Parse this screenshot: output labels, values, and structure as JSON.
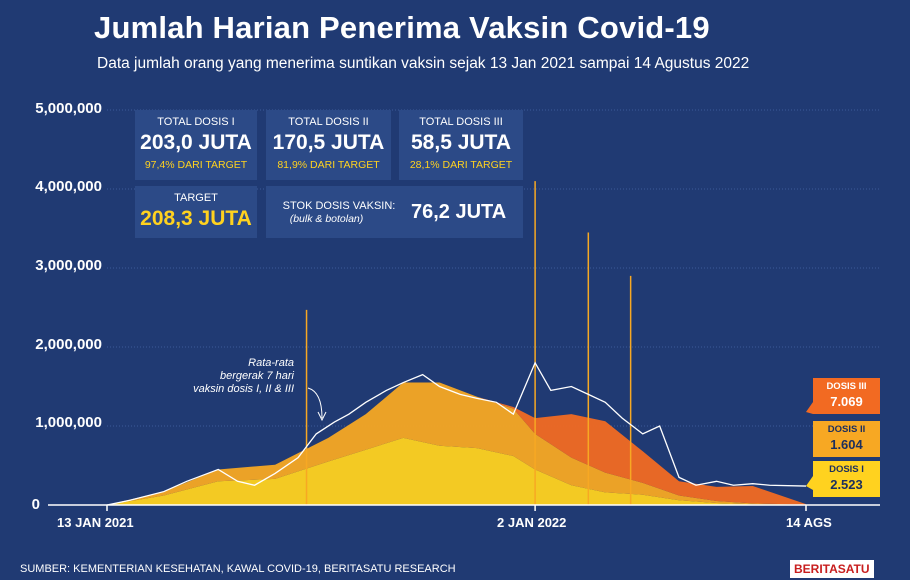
{
  "title": "Jumlah Harian Penerima Vaksin Covid-19",
  "subtitle": "Data jumlah orang yang menerima suntikan vaksin sejak 13 Jan 2021 sampai 14 Agustus 2022",
  "stats": {
    "dose1": {
      "label": "TOTAL DOSIS I",
      "value": "203,0 JUTA",
      "pct": "97,4% DARI TARGET"
    },
    "dose2": {
      "label": "TOTAL DOSIS II",
      "value": "170,5 JUTA",
      "pct": "81,9% DARI TARGET"
    },
    "dose3": {
      "label": "TOTAL DOSIS III",
      "value": "58,5 JUTA",
      "pct": "28,1% DARI TARGET"
    },
    "target": {
      "label": "TARGET",
      "value": "208,3 JUTA"
    },
    "stock": {
      "label": "STOK DOSIS VAKSIN:",
      "sublabel": "(bulk & botolan)",
      "value": "76,2 JUTA"
    }
  },
  "annotation": [
    "Rata-rata",
    "bergerak 7 hari",
    "vaksin dosis I, II & III"
  ],
  "end_labels": {
    "dose3": {
      "name": "DOSIS III",
      "value": "7.069"
    },
    "dose2": {
      "name": "DOSIS II",
      "value": "1.604"
    },
    "dose1": {
      "name": "DOSIS I",
      "value": "2.523"
    }
  },
  "source": "SUMBER: KEMENTERIAN KESEHATAN, KAWAL COVID-19, BERITASATU RESEARCH",
  "brand": {
    "part1": "BERITA",
    "part2": "SATU"
  },
  "colors": {
    "background": "#203a73",
    "dose1": "#ffd21f",
    "dose2": "#f7a823",
    "dose3": "#f26a22",
    "average": "#ffffff",
    "box": "#2c4a87"
  },
  "chart_data": {
    "type": "area",
    "x_labels": [
      "13 JAN 2021",
      "2 JAN 2022",
      "14 AGS"
    ],
    "y_ticks": [
      "5,000,000",
      "4,000,000",
      "3,000,000",
      "2,000,000",
      "1,000,000",
      "0"
    ],
    "ylim": [
      0,
      5000000
    ],
    "x_range": [
      "2021-01-13",
      "2022-08-14"
    ],
    "grid": true,
    "series": [
      {
        "name": "DOSIS I",
        "dates": [
          "2021-01-13",
          "2021-03-01",
          "2021-04-15",
          "2021-06-01",
          "2021-07-15",
          "2021-08-15",
          "2021-09-15",
          "2021-10-15",
          "2021-11-15",
          "2021-12-15",
          "2022-01-02",
          "2022-02-01",
          "2022-03-01",
          "2022-04-01",
          "2022-05-01",
          "2022-06-01",
          "2022-07-01",
          "2022-08-14"
        ],
        "values": [
          0,
          120000,
          300000,
          330000,
          550000,
          700000,
          850000,
          750000,
          720000,
          620000,
          450000,
          250000,
          160000,
          130000,
          60000,
          25000,
          10000,
          2523
        ]
      },
      {
        "name": "DOSIS II",
        "dates": [
          "2021-01-13",
          "2021-03-01",
          "2021-04-15",
          "2021-06-01",
          "2021-07-15",
          "2021-08-15",
          "2021-09-15",
          "2021-10-15",
          "2021-11-15",
          "2021-12-15",
          "2022-01-02",
          "2022-02-01",
          "2022-03-01",
          "2022-04-01",
          "2022-05-01",
          "2022-06-01",
          "2022-07-01",
          "2022-08-14"
        ],
        "values": [
          0,
          50000,
          150000,
          180000,
          300000,
          450000,
          700000,
          800000,
          650000,
          600000,
          450000,
          350000,
          250000,
          150000,
          60000,
          25000,
          10000,
          1604
        ]
      },
      {
        "name": "DOSIS III",
        "dates": [
          "2021-01-13",
          "2021-03-01",
          "2021-04-15",
          "2021-06-01",
          "2021-07-15",
          "2021-08-15",
          "2021-09-15",
          "2021-10-15",
          "2021-11-15",
          "2021-12-15",
          "2022-01-02",
          "2022-02-01",
          "2022-03-01",
          "2022-04-01",
          "2022-05-01",
          "2022-06-01",
          "2022-07-01",
          "2022-08-14"
        ],
        "values": [
          0,
          0,
          0,
          0,
          0,
          0,
          0,
          0,
          0,
          20000,
          200000,
          550000,
          650000,
          400000,
          180000,
          180000,
          220000,
          7069
        ]
      }
    ],
    "moving_average": {
      "dates": [
        "2021-01-13",
        "2021-02-01",
        "2021-03-01",
        "2021-03-20",
        "2021-04-15",
        "2021-05-01",
        "2021-05-15",
        "2021-06-01",
        "2021-06-20",
        "2021-07-05",
        "2021-07-20",
        "2021-08-01",
        "2021-08-15",
        "2021-09-01",
        "2021-09-15",
        "2021-10-01",
        "2021-10-15",
        "2021-11-01",
        "2021-11-15",
        "2021-12-01",
        "2021-12-15",
        "2022-01-02",
        "2022-01-15",
        "2022-02-01",
        "2022-02-15",
        "2022-03-01",
        "2022-03-15",
        "2022-04-01",
        "2022-04-15",
        "2022-05-01",
        "2022-05-15",
        "2022-06-01",
        "2022-06-15",
        "2022-07-01",
        "2022-07-15",
        "2022-08-14"
      ],
      "values": [
        0,
        60000,
        170000,
        300000,
        450000,
        300000,
        250000,
        400000,
        600000,
        900000,
        1050000,
        1150000,
        1300000,
        1450000,
        1550000,
        1650000,
        1500000,
        1400000,
        1350000,
        1300000,
        1150000,
        1800000,
        1450000,
        1500000,
        1400000,
        1300000,
        1100000,
        900000,
        1000000,
        350000,
        250000,
        300000,
        250000,
        270000,
        250000,
        240000
      ]
    },
    "spikes": [
      {
        "date": "2021-06-27",
        "value": 2470000
      },
      {
        "date": "2022-01-02",
        "value": 4100000
      },
      {
        "date": "2022-02-15",
        "value": 3450000
      },
      {
        "date": "2022-03-22",
        "value": 2900000
      }
    ]
  }
}
